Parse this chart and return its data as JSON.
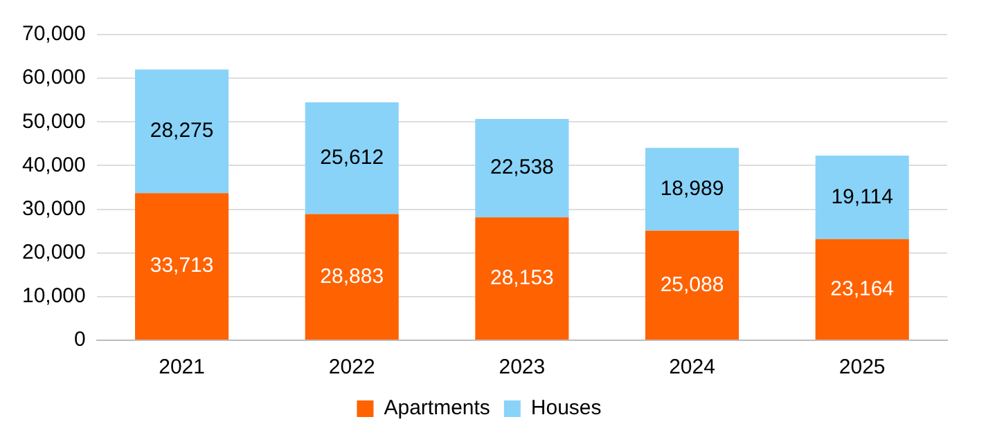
{
  "chart_data": {
    "type": "bar",
    "stacked": true,
    "categories": [
      "2021",
      "2022",
      "2023",
      "2024",
      "2025"
    ],
    "series": [
      {
        "name": "Apartments",
        "color": "#ff6200",
        "values": [
          33713,
          28883,
          28153,
          25088,
          23164
        ],
        "value_labels": [
          "33,713",
          "28,883",
          "28,153",
          "25,088",
          "23,164"
        ]
      },
      {
        "name": "Houses",
        "color": "#89d3f8",
        "values": [
          28275,
          25612,
          22538,
          18989,
          19114
        ],
        "value_labels": [
          "28,275",
          "25,612",
          "22,538",
          "18,989",
          "19,114"
        ]
      }
    ],
    "ylim": [
      0,
      70000
    ],
    "yticks": [
      0,
      {
        "value": 10000,
        "label": "10,000"
      },
      {
        "value": 20000,
        "label": "20,000"
      },
      {
        "value": 30000,
        "label": "30,000"
      },
      {
        "value": 40000,
        "label": "40,000"
      },
      {
        "value": 50000,
        "label": "50,000"
      },
      {
        "value": 60000,
        "label": "60,000"
      },
      {
        "value": 70000,
        "label": "70,000"
      }
    ],
    "grid": "y",
    "legend": "bottom"
  }
}
